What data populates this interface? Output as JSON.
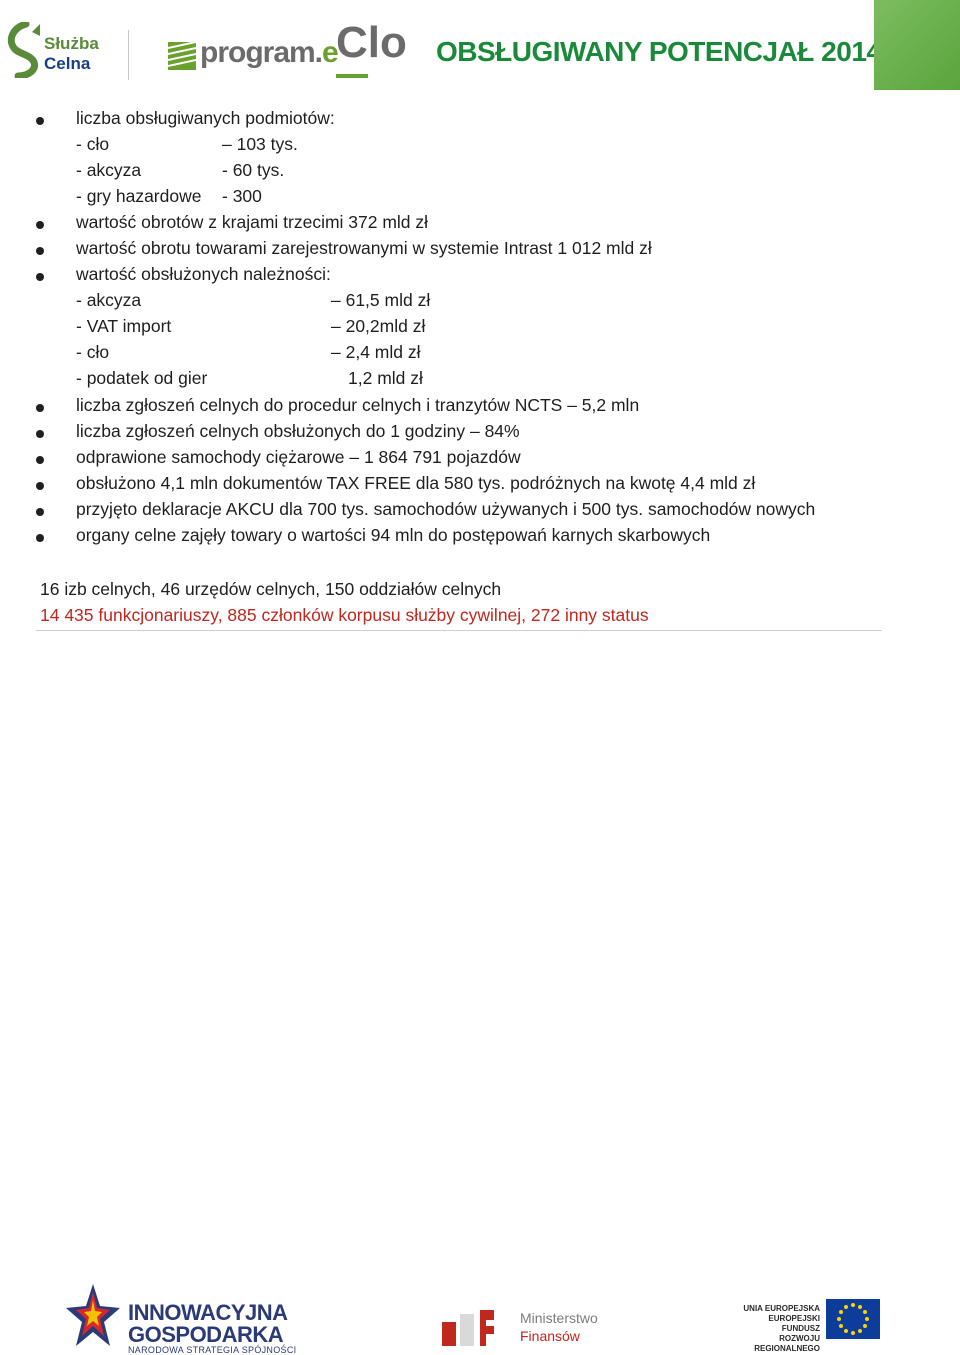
{
  "header": {
    "logo_sc_line1": "Służba",
    "logo_sc_line2": "Celna",
    "program_text": "program.",
    "program_e": "e",
    "program_clo": "Clo",
    "title": "OBSŁUGIWANY POTENCJAŁ 2014"
  },
  "content": {
    "b1": "liczba obsługiwanych podmiotów:",
    "b1_sub": [
      {
        "label": "- cło",
        "value": "– 103 tys."
      },
      {
        "label": "- akcyza",
        "value": "- 60 tys."
      },
      {
        "label": "- gry hazardowe",
        "value": "- 300"
      }
    ],
    "b2": "wartość obrotów z krajami trzecimi 372 mld zł",
    "b3": "wartość obrotu towarami zarejestrowanymi w systemie Intrast 1 012 mld zł",
    "b4": "wartość obsłużonych należności:",
    "b4_sub": [
      {
        "label": "- akcyza",
        "value": "– 61,5 mld zł"
      },
      {
        "label": "- VAT import",
        "value": "– 20,2mld zł"
      },
      {
        "label": "- cło",
        "value": "– 2,4 mld zł"
      },
      {
        "label": "- podatek od gier",
        "value": "1,2 mld zł"
      }
    ],
    "b5": "liczba zgłoszeń celnych do procedur celnych i tranzytów NCTS – 5,2 mln",
    "b6": "liczba zgłoszeń celnych obsłużonych do 1 godziny – 84%",
    "b7": "odprawione samochody ciężarowe – 1 864 791 pojazdów",
    "b8": "obsłużono 4,1 mln dokumentów TAX FREE dla 580 tys. podróżnych na kwotę 4,4 mld zł",
    "b9": "przyjęto deklaracje AKCU dla 700 tys. samochodów używanych i 500 tys. samochodów nowych",
    "b10": "organy celne zajęły towary o wartości 94 mln do postępowań karnych skarbowych",
    "summary1": "16 izb celnych, 46 urzędów celnych, 150 oddziałów celnych",
    "summary2": "14 435 funkcjonariuszy, 885 członków korpusu służby cywilnej, 272 inny status"
  },
  "footer": {
    "ig_line1": "INNOWACYJNA",
    "ig_line2": "GOSPODARKA",
    "ig_line3": "NARODOWA STRATEGIA SPÓJNOŚCI",
    "mf_line1": "Ministerstwo",
    "mf_line2": "Finansów",
    "ue_line1": "UNIA EUROPEJSKA",
    "ue_line2": "EUROPEJSKI FUNDUSZ",
    "ue_line3": "ROZWOJU REGIONALNEGO"
  },
  "colors": {
    "title_green": "#1a8a3a",
    "summary_red": "#c0271d",
    "accent_square": "#5fae3e",
    "ig_blue": "#2b3a78",
    "eu_blue": "#0d3d9a"
  }
}
